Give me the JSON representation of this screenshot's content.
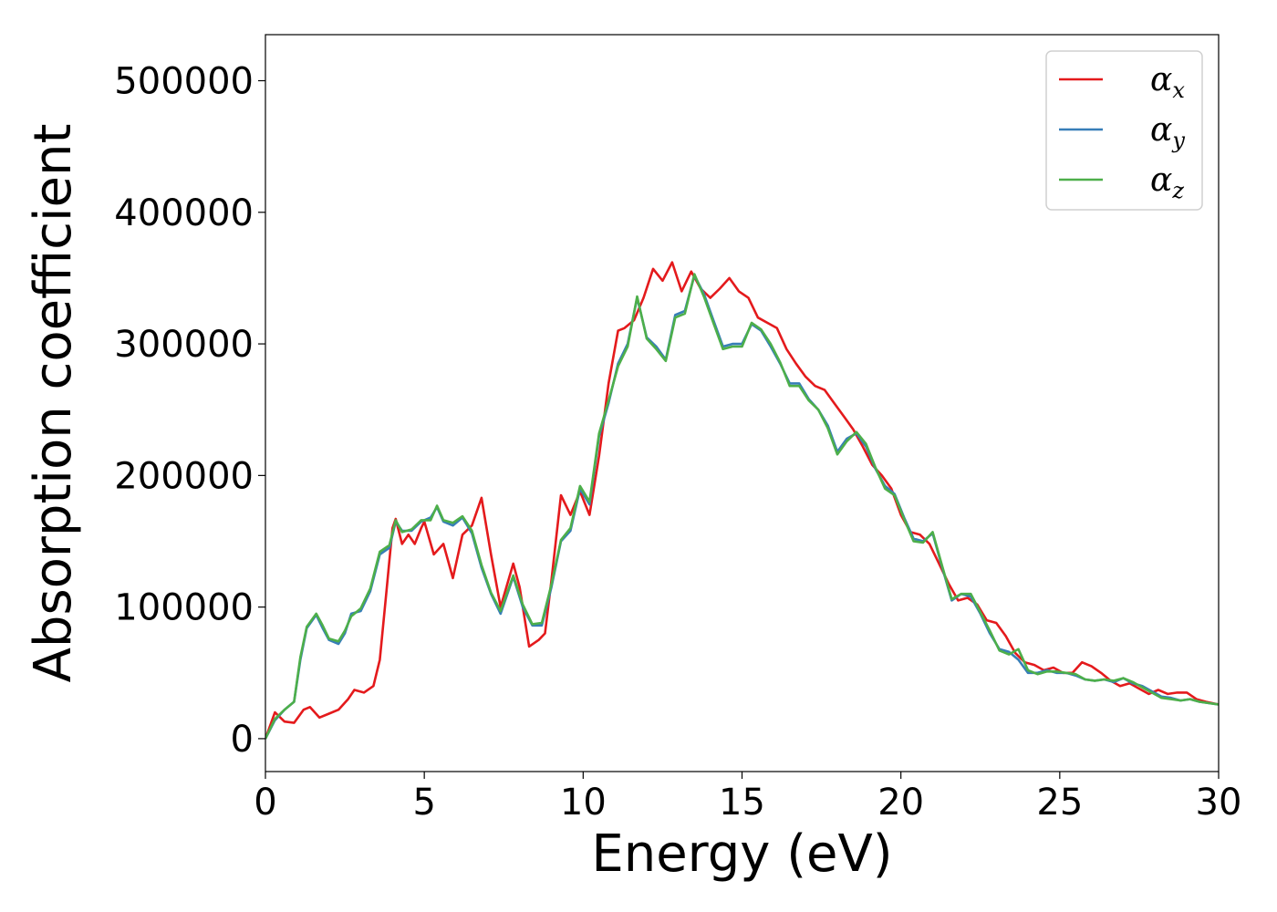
{
  "chart_data": {
    "type": "line",
    "xlabel": "Energy (eV)",
    "ylabel": "Absorption coefficient",
    "xlim": [
      0,
      30
    ],
    "ylim": [
      -25000,
      535000
    ],
    "xticks": [
      0,
      5,
      10,
      15,
      20,
      25,
      30
    ],
    "yticks": [
      0,
      100000,
      200000,
      300000,
      400000,
      500000
    ],
    "grid": false,
    "legend_position": "top-right",
    "series": [
      {
        "name": "α",
        "sub": "x",
        "color": "#e41a1c",
        "x": [
          0,
          0.3,
          0.6,
          0.9,
          1.2,
          1.4,
          1.7,
          2.0,
          2.3,
          2.6,
          2.8,
          3.1,
          3.4,
          3.6,
          3.8,
          4.0,
          4.1,
          4.3,
          4.5,
          4.7,
          4.9,
          5.0,
          5.3,
          5.6,
          5.9,
          6.2,
          6.5,
          6.8,
          7.1,
          7.4,
          7.8,
          8.0,
          8.3,
          8.6,
          8.8,
          9.0,
          9.3,
          9.6,
          9.9,
          10.2,
          10.5,
          10.8,
          11.1,
          11.3,
          11.6,
          11.9,
          12.2,
          12.5,
          12.8,
          13.1,
          13.4,
          13.7,
          14.0,
          14.3,
          14.6,
          14.9,
          15.2,
          15.5,
          15.8,
          16.1,
          16.4,
          16.7,
          17.0,
          17.3,
          17.6,
          17.9,
          18.2,
          18.5,
          18.8,
          19.1,
          19.4,
          19.7,
          20.0,
          20.3,
          20.6,
          20.9,
          21.2,
          21.5,
          21.8,
          22.1,
          22.4,
          22.7,
          23.0,
          23.3,
          23.6,
          23.9,
          24.2,
          24.5,
          24.8,
          25.1,
          25.4,
          25.7,
          26.0,
          26.3,
          26.6,
          26.9,
          27.2,
          27.5,
          27.8,
          28.1,
          28.4,
          28.7,
          29.0,
          29.3,
          29.6,
          30.0
        ],
        "y": [
          0,
          20000,
          13000,
          12000,
          22000,
          24000,
          16000,
          19000,
          22000,
          30000,
          37000,
          35000,
          40000,
          60000,
          110000,
          160000,
          167000,
          148000,
          155000,
          148000,
          160000,
          165000,
          140000,
          148000,
          122000,
          155000,
          162000,
          183000,
          140000,
          100000,
          133000,
          115000,
          70000,
          75000,
          80000,
          120000,
          185000,
          170000,
          188000,
          170000,
          215000,
          270000,
          310000,
          312000,
          318000,
          335000,
          357000,
          348000,
          362000,
          340000,
          355000,
          342000,
          335000,
          342000,
          350000,
          340000,
          335000,
          320000,
          316000,
          312000,
          296000,
          285000,
          275000,
          268000,
          265000,
          255000,
          245000,
          235000,
          222000,
          208000,
          200000,
          190000,
          170000,
          157000,
          155000,
          148000,
          133000,
          118000,
          105000,
          107000,
          102000,
          90000,
          88000,
          78000,
          65000,
          58000,
          56000,
          52000,
          54000,
          50000,
          50000,
          58000,
          55000,
          50000,
          44000,
          40000,
          42000,
          38000,
          34000,
          37000,
          34000,
          35000,
          35000,
          30000,
          28000,
          26000
        ]
      },
      {
        "name": "α",
        "sub": "y",
        "color": "#377eb8",
        "x": [
          0,
          0.3,
          0.6,
          0.9,
          1.1,
          1.3,
          1.6,
          1.8,
          2.0,
          2.3,
          2.5,
          2.7,
          3.0,
          3.3,
          3.6,
          3.9,
          4.1,
          4.3,
          4.6,
          4.9,
          5.2,
          5.4,
          5.6,
          5.9,
          6.2,
          6.5,
          6.8,
          7.1,
          7.4,
          7.8,
          8.1,
          8.4,
          8.7,
          9.0,
          9.3,
          9.6,
          9.9,
          10.2,
          10.5,
          10.8,
          11.1,
          11.4,
          11.7,
          12.0,
          12.3,
          12.6,
          12.9,
          13.2,
          13.5,
          13.8,
          14.1,
          14.4,
          14.7,
          15.0,
          15.3,
          15.6,
          15.9,
          16.2,
          16.5,
          16.8,
          17.1,
          17.4,
          17.7,
          18.0,
          18.3,
          18.6,
          18.9,
          19.2,
          19.5,
          19.8,
          20.1,
          20.4,
          20.7,
          21.0,
          21.3,
          21.6,
          21.9,
          22.2,
          22.5,
          22.8,
          23.1,
          23.4,
          23.7,
          24.0,
          24.3,
          24.6,
          24.9,
          25.2,
          25.5,
          25.8,
          26.1,
          26.4,
          26.7,
          27.0,
          27.3,
          27.6,
          27.9,
          28.2,
          28.5,
          28.8,
          29.1,
          29.4,
          29.7,
          30.0
        ],
        "y": [
          0,
          14000,
          22000,
          28000,
          60000,
          84000,
          94000,
          84000,
          75000,
          72000,
          80000,
          95000,
          97000,
          112000,
          140000,
          145000,
          165000,
          158000,
          158000,
          165000,
          168000,
          176000,
          165000,
          162000,
          168000,
          156000,
          130000,
          110000,
          95000,
          123000,
          100000,
          86000,
          86000,
          115000,
          150000,
          158000,
          190000,
          178000,
          230000,
          255000,
          285000,
          300000,
          335000,
          305000,
          298000,
          288000,
          322000,
          325000,
          352000,
          338000,
          318000,
          298000,
          300000,
          300000,
          315000,
          310000,
          298000,
          285000,
          270000,
          270000,
          258000,
          250000,
          238000,
          218000,
          228000,
          232000,
          222000,
          205000,
          192000,
          186000,
          168000,
          152000,
          150000,
          156000,
          130000,
          105000,
          110000,
          108000,
          95000,
          80000,
          68000,
          66000,
          60000,
          50000,
          50000,
          52000,
          50000,
          50000,
          48000,
          45000,
          44000,
          45000,
          43000,
          46000,
          42000,
          40000,
          36000,
          32000,
          31000,
          29000,
          30000,
          28000,
          27000,
          26000
        ]
      },
      {
        "name": "α",
        "sub": "z",
        "color": "#4daf4a",
        "x": [
          0,
          0.3,
          0.6,
          0.9,
          1.1,
          1.3,
          1.6,
          1.8,
          2.0,
          2.3,
          2.5,
          2.7,
          3.0,
          3.3,
          3.6,
          3.9,
          4.1,
          4.3,
          4.6,
          4.9,
          5.2,
          5.4,
          5.6,
          5.9,
          6.2,
          6.5,
          6.8,
          7.1,
          7.4,
          7.8,
          8.1,
          8.4,
          8.7,
          9.0,
          9.3,
          9.6,
          9.9,
          10.2,
          10.5,
          10.8,
          11.1,
          11.4,
          11.7,
          12.0,
          12.3,
          12.6,
          12.9,
          13.2,
          13.5,
          13.8,
          14.1,
          14.4,
          14.7,
          15.0,
          15.3,
          15.6,
          15.9,
          16.2,
          16.5,
          16.8,
          17.1,
          17.4,
          17.7,
          18.0,
          18.3,
          18.6,
          18.9,
          19.2,
          19.5,
          19.8,
          20.1,
          20.4,
          20.7,
          21.0,
          21.3,
          21.6,
          21.9,
          22.2,
          22.5,
          22.8,
          23.1,
          23.4,
          23.7,
          24.0,
          24.3,
          24.6,
          24.9,
          25.2,
          25.5,
          25.8,
          26.1,
          26.4,
          26.7,
          27.0,
          27.3,
          27.6,
          27.9,
          28.2,
          28.5,
          28.8,
          29.1,
          29.4,
          29.7,
          30.0
        ],
        "y": [
          0,
          15000,
          22000,
          28000,
          62000,
          85000,
          95000,
          86000,
          76000,
          74000,
          82000,
          93000,
          99000,
          114000,
          142000,
          147000,
          166000,
          157000,
          159000,
          166000,
          166000,
          177000,
          166000,
          164000,
          169000,
          158000,
          132000,
          111000,
          97000,
          124000,
          102000,
          87000,
          88000,
          117000,
          151000,
          160000,
          192000,
          180000,
          232000,
          257000,
          283000,
          298000,
          336000,
          304000,
          296000,
          287000,
          320000,
          323000,
          353000,
          336000,
          316000,
          296000,
          298000,
          298000,
          316000,
          311000,
          300000,
          286000,
          268000,
          268000,
          257000,
          250000,
          236000,
          216000,
          226000,
          233000,
          224000,
          206000,
          190000,
          185000,
          167000,
          150000,
          149000,
          157000,
          131000,
          106000,
          110000,
          110000,
          96000,
          82000,
          67000,
          64000,
          68000,
          52000,
          49000,
          51000,
          51000,
          50000,
          49000,
          45000,
          44000,
          45000,
          44000,
          46000,
          43000,
          39000,
          35000,
          31000,
          30000,
          29000,
          30000,
          28000,
          27000,
          26000
        ]
      }
    ]
  }
}
